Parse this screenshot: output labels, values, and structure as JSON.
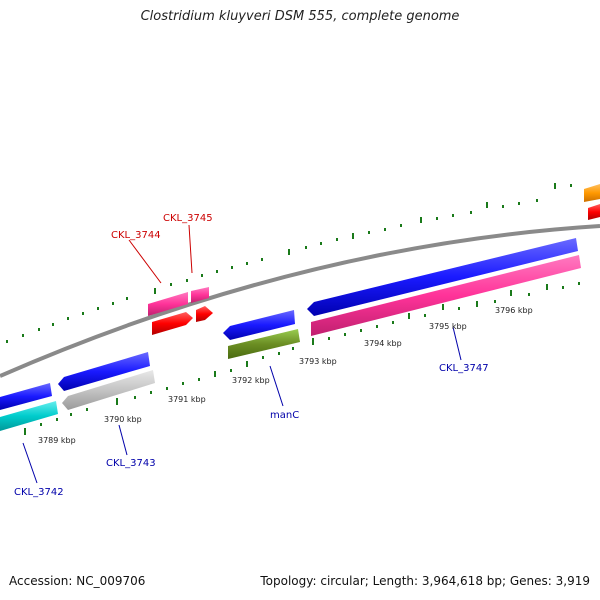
{
  "title": "Clostridium kluyveri DSM 555, complete genome",
  "footer": {
    "accession": "Accession: NC_009706",
    "summary": "Topology: circular; Length: 3,964,618 bp; Genes: 3,919"
  },
  "kbp_ticks": [
    "3789 kbp",
    "3790 kbp",
    "3791 kbp",
    "3792 kbp",
    "3793 kbp",
    "3794 kbp",
    "3795 kbp",
    "3796 kbp"
  ],
  "gene_labels": {
    "forward": [
      "CKL_3744",
      "CKL_3745"
    ],
    "reverse": [
      "CKL_3742",
      "CKL_3743",
      "manC",
      "CKL_3747"
    ]
  },
  "colors": {
    "backbone": "#888888",
    "tick": "#1a7a1a",
    "forward_label": "#cc0000",
    "reverse_label": "#0000aa",
    "blue_gene": "#1a1aff",
    "pink_gene": "#ff3399",
    "red_gene": "#ff0000",
    "cyan_gene": "#00cccc",
    "grey_gene": "#bbbbbb",
    "olive_gene": "#6b8e23",
    "orange_gene": "#ff9900"
  }
}
